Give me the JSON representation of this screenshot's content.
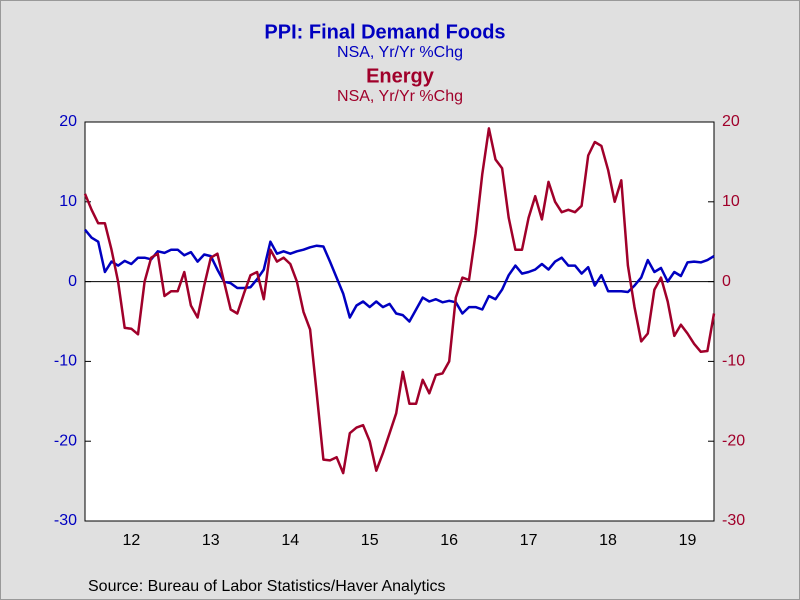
{
  "chart_data": {
    "type": "line",
    "series": [
      {
        "name": "PPI: Final Demand Foods",
        "subtitle": "NSA, Yr/Yr %Chg",
        "color": "#0000c0",
        "axis": "y",
        "values": [
          6.5,
          5.5,
          5,
          1.2,
          2.5,
          2,
          2.6,
          2.2,
          3,
          3,
          2.8,
          3.8,
          3.6,
          4,
          4,
          3.3,
          3.7,
          2.5,
          3.4,
          3.2,
          1.5,
          0,
          -0.2,
          -0.8,
          -0.8,
          -0.7,
          0.3,
          1.5,
          5,
          3.5,
          3.8,
          3.5,
          3.8,
          4,
          4.3,
          4.5,
          4.4,
          2.5,
          0.5,
          -1.5,
          -4.5,
          -3,
          -2.5,
          -3.2,
          -2.5,
          -3.2,
          -2.8,
          -4,
          -4.2,
          -5,
          -3.5,
          -2,
          -2.5,
          -2.2,
          -2.6,
          -2.4,
          -2.6,
          -4,
          -3.2,
          -3.2,
          -3.5,
          -1.8,
          -2.2,
          -1,
          0.8,
          2,
          1,
          1.2,
          1.5,
          2.2,
          1.5,
          2.5,
          3,
          2,
          2,
          1,
          1.8,
          -0.5,
          0.8,
          -1.2,
          -1.2,
          -1.2,
          -1.3,
          -0.5,
          0.5,
          2.7,
          1.2,
          1.7,
          0,
          1.2,
          0.7,
          2.4,
          2.5,
          2.4,
          2.7,
          3.2
        ]
      },
      {
        "name": "Energy",
        "subtitle": "NSA, Yr/Yr %Chg",
        "color": "#a0002a",
        "axis": "y2",
        "values": [
          11,
          9,
          7.3,
          7.3,
          4,
          0,
          -5.8,
          -5.9,
          -6.6,
          0,
          3,
          3.5,
          -1.8,
          -1.2,
          -1.2,
          1.2,
          -3,
          -4.5,
          -0.5,
          3,
          3.5,
          0,
          -3.5,
          -4,
          -1.5,
          0.8,
          1.2,
          -2.2,
          4,
          2.5,
          3,
          2.2,
          0,
          -3.8,
          -6,
          -14,
          -22.3,
          -22.4,
          -22,
          -24,
          -19,
          -18.3,
          -18,
          -20,
          -23.7,
          -21.5,
          -19,
          -16.5,
          -11.3,
          -15.3,
          -15.3,
          -12.3,
          -14,
          -11.7,
          -11.5,
          -10,
          -2,
          0.5,
          0.2,
          6,
          13.5,
          19.2,
          15.3,
          14.2,
          8,
          4,
          4,
          8,
          10.7,
          7.8,
          12.5,
          10,
          8.7,
          9,
          8.7,
          9.5,
          15.8,
          17.5,
          17,
          14,
          10,
          12.7,
          2,
          -3.2,
          -7.5,
          -6.5,
          -1,
          0.5,
          -2.5,
          -6.8,
          -5.4,
          -6.5,
          -7.8,
          -8.8,
          -8.7,
          -4
        ]
      }
    ],
    "categories": [
      null,
      null,
      null,
      null,
      null,
      null,
      null,
      "12",
      null,
      null,
      null,
      null,
      null,
      null,
      null,
      null,
      null,
      null,
      null,
      "13",
      null,
      null,
      null,
      null,
      null,
      null,
      null,
      null,
      null,
      null,
      null,
      "14",
      null,
      null,
      null,
      null,
      null,
      null,
      null,
      null,
      null,
      null,
      null,
      "15",
      null,
      null,
      null,
      null,
      null,
      null,
      null,
      null,
      null,
      null,
      null,
      "16",
      null,
      null,
      null,
      null,
      null,
      null,
      null,
      null,
      null,
      null,
      null,
      "17",
      null,
      null,
      null,
      null,
      null,
      null,
      null,
      null,
      null,
      null,
      null,
      "18",
      null,
      null,
      null,
      null,
      null,
      null,
      null,
      null,
      null,
      null,
      null,
      "19",
      null,
      null,
      null,
      null
    ],
    "ylim": [
      -30,
      20
    ],
    "yticks": [
      20,
      10,
      0,
      -10,
      -20,
      -30
    ],
    "y2lim": [
      -30,
      20
    ],
    "y2ticks": [
      20,
      10,
      0,
      -10,
      -20,
      -30
    ],
    "zero_line": 0,
    "source": "Source:  Bureau of Labor Statistics/Haver Analytics"
  }
}
